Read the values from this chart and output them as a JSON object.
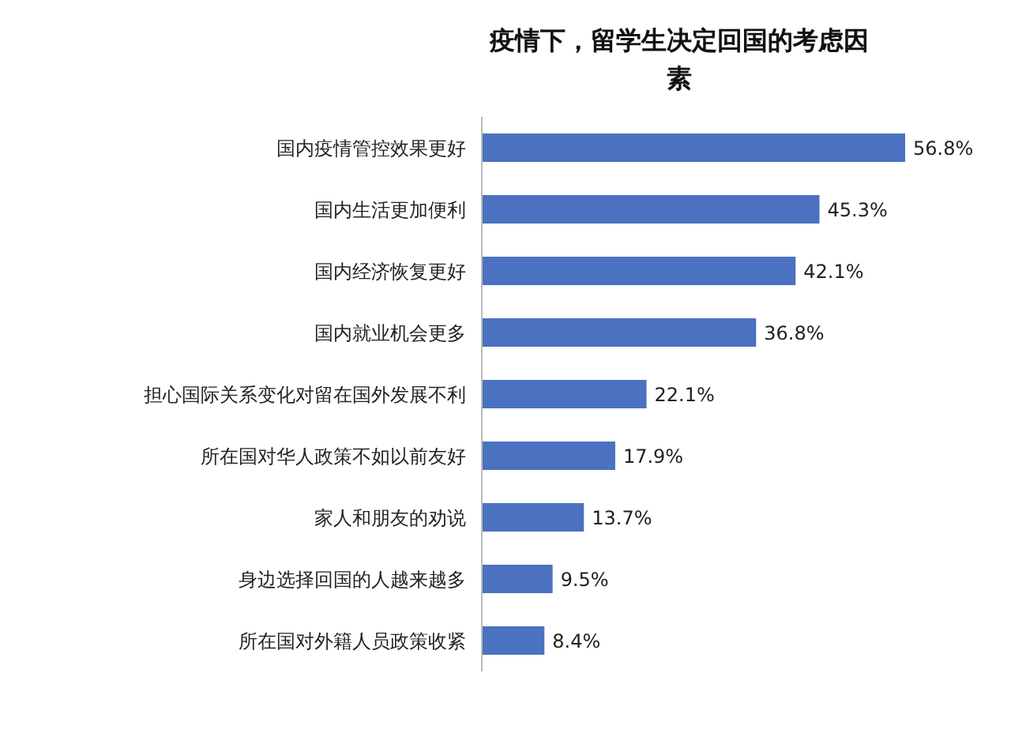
{
  "chart_data": {
    "type": "bar",
    "orientation": "horizontal",
    "title": "疫情下，留学生决定回国的考虑因素",
    "categories": [
      "国内疫情管控效果更好",
      "国内生活更加便利",
      "国内经济恢复更好",
      "国内就业机会更多",
      "担心国际关系变化对留在国外发展不利",
      "所在国对华人政策不如以前友好",
      "家人和朋友的劝说",
      "身边选择回国的人越来越多",
      "所在国对外籍人员政策收紧"
    ],
    "values": [
      56.8,
      45.3,
      42.1,
      36.8,
      22.1,
      17.9,
      13.7,
      9.5,
      8.4
    ],
    "value_labels": [
      "56.8%",
      "45.3%",
      "42.1%",
      "36.8%",
      "22.1%",
      "17.9%",
      "13.7%",
      "9.5%",
      "8.4%"
    ],
    "color": "#4a72c0"
  }
}
